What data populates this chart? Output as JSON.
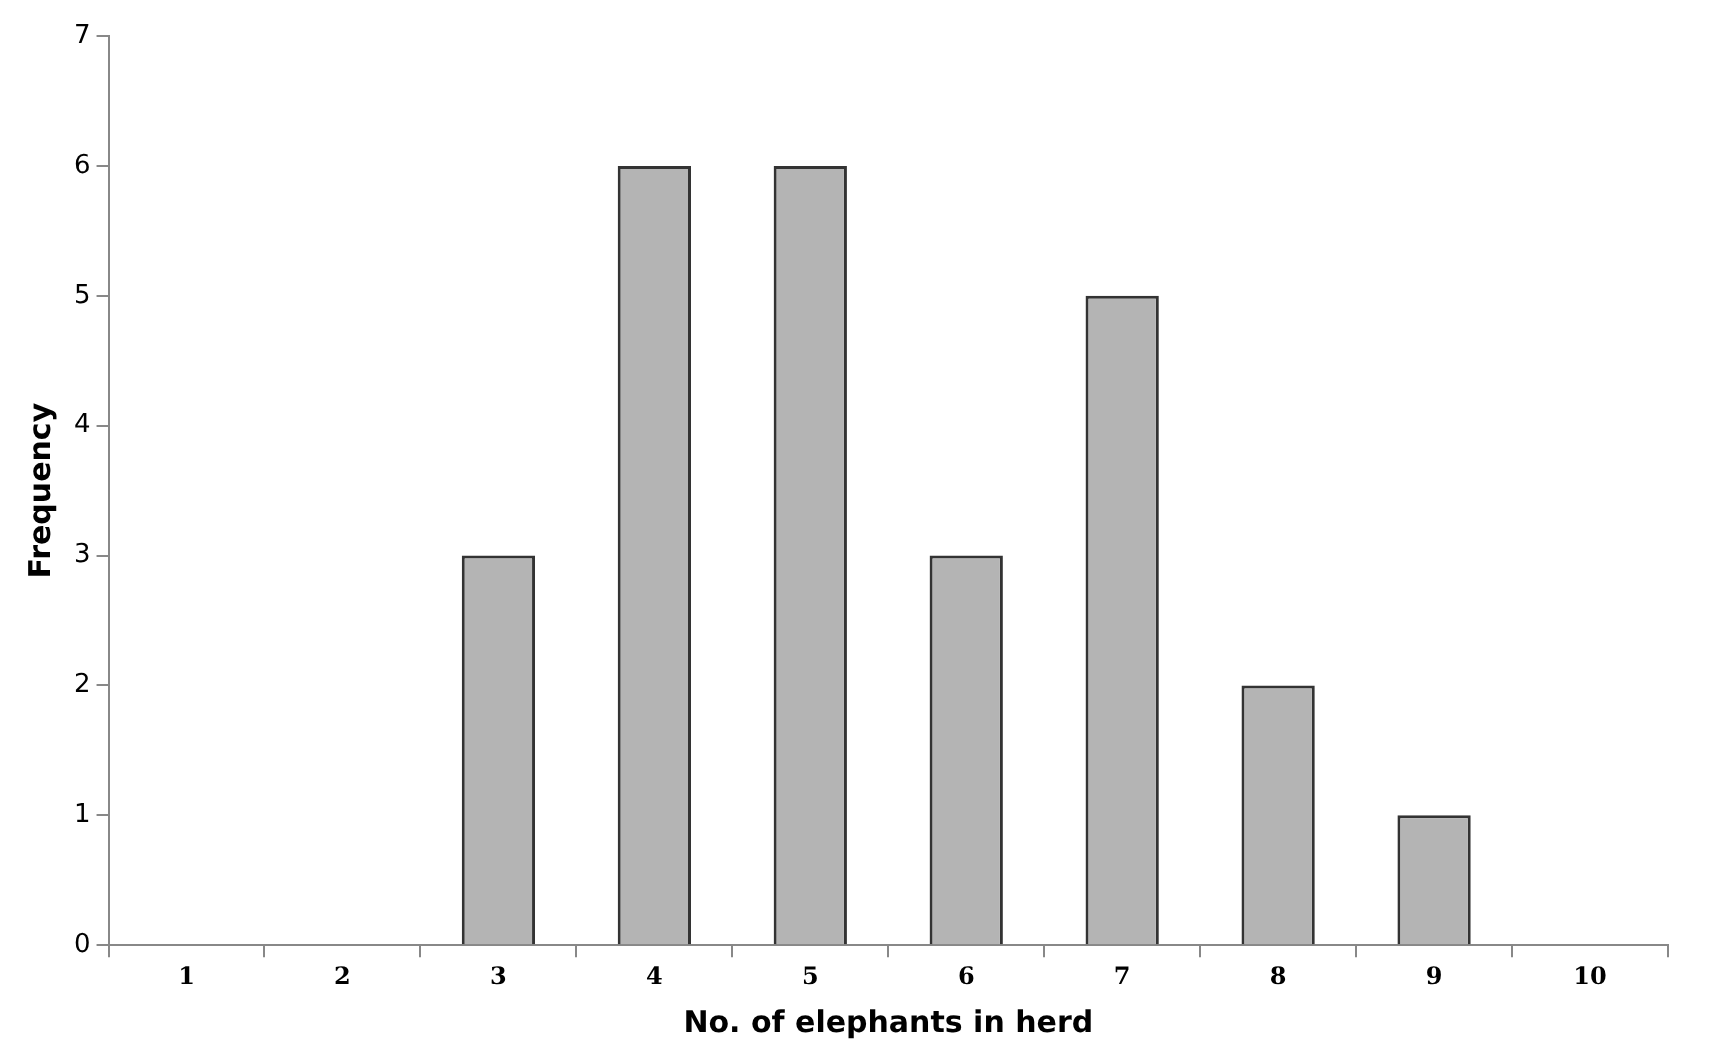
{
  "chart_data": {
    "type": "bar",
    "xlabel": "No. of elephants in herd",
    "ylabel": "Frequency",
    "categories": [
      "1",
      "2",
      "3",
      "4",
      "5",
      "6",
      "7",
      "8",
      "9",
      "10"
    ],
    "values": [
      0,
      0,
      3,
      6,
      6,
      3,
      5,
      2,
      1,
      0
    ],
    "color": "#b4b4b4",
    "ylim": [
      0,
      7
    ],
    "yticks": [
      0,
      1,
      2,
      3,
      4,
      5,
      6,
      7
    ],
    "grid": false,
    "legend": false
  }
}
